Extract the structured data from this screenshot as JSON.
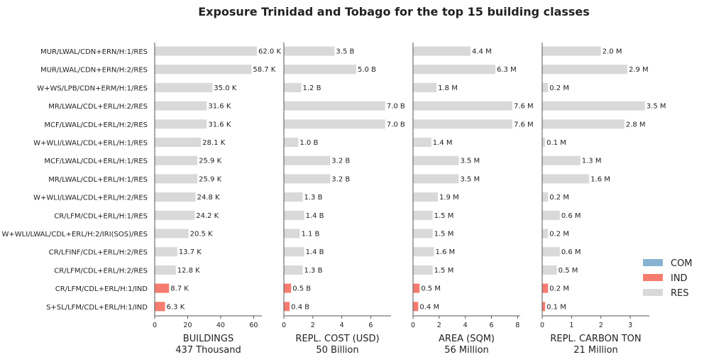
{
  "title": "Exposure Trinidad and Tobago for the top 15 building classes",
  "colors": {
    "COM": "#87b3d3",
    "IND": "#f67c6f",
    "RES": "#d9d9d9",
    "axis": "#555555"
  },
  "chart_data": {
    "type": "bar",
    "orientation": "horizontal",
    "categories": [
      "MUR/LWAL/CDN+ERN/H:1/RES",
      "MUR/LWAL/CDN+ERN/H:2/RES",
      "W+WS/LPB/CDN+ERM/H:1/RES",
      "MR/LWAL/CDL+ERL/H:2/RES",
      "MCF/LWAL/CDL+ERL/H:2/RES",
      "W+WLI/LWAL/CDL+ERL/H:1/RES",
      "MCF/LWAL/CDL+ERL/H:1/RES",
      "MR/LWAL/CDL+ERL/H:1/RES",
      "W+WLI/LWAL/CDL+ERL/H:2/RES",
      "CR/LFM/CDL+ERL/H:1/RES",
      "W+WLI/LWAL/CDL+ERL/H:2/IRI(SOS)/RES",
      "CR/LFINF/CDL+ERL/H:2/RES",
      "CR/LFM/CDL+ERL/H:2/RES",
      "CR/LFM/CDL+ERL/H:1/IND",
      "S+SL/LFM/CDL+ERL/H:1/IND"
    ],
    "occupancy": [
      "RES",
      "RES",
      "RES",
      "RES",
      "RES",
      "RES",
      "RES",
      "RES",
      "RES",
      "RES",
      "RES",
      "RES",
      "RES",
      "IND",
      "IND"
    ],
    "legend": {
      "entries": [
        "COM",
        "IND",
        "RES"
      ],
      "placement": "lower-right"
    },
    "panels": [
      {
        "xlabel": "BUILDINGS",
        "total": "437 Thousand",
        "xlim": [
          0,
          65
        ],
        "ticks": [
          0,
          20,
          40,
          60
        ],
        "values": [
          62.0,
          58.7,
          35.0,
          31.6,
          31.6,
          28.1,
          25.9,
          25.9,
          24.8,
          24.2,
          20.5,
          13.7,
          12.8,
          8.7,
          6.3
        ],
        "labels": [
          "62.0 K",
          "58.7 K",
          "35.0 K",
          "31.6 K",
          "31.6 K",
          "28.1 K",
          "25.9 K",
          "25.9 K",
          "24.8 K",
          "24.2 K",
          "20.5 K",
          "13.7 K",
          "12.8 K",
          "8.7 K",
          "6.3 K"
        ]
      },
      {
        "xlabel": "REPL. COST (USD)",
        "total": "50 Billion",
        "xlim": [
          0,
          7.4
        ],
        "ticks": [
          0,
          2,
          4,
          6
        ],
        "values": [
          3.5,
          5.0,
          1.2,
          7.0,
          7.0,
          1.0,
          3.2,
          3.2,
          1.3,
          1.4,
          1.1,
          1.4,
          1.3,
          0.5,
          0.4
        ],
        "labels": [
          "3.5 B",
          "5.0 B",
          "1.2 B",
          "7.0 B",
          "7.0 B",
          "1.0 B",
          "3.2 B",
          "3.2 B",
          "1.3 B",
          "1.4 B",
          "1.1 B",
          "1.4 B",
          "1.3 B",
          "0.5 B",
          "0.4 B"
        ]
      },
      {
        "xlabel": "AREA (SQM)",
        "total": "56 Million",
        "xlim": [
          0,
          8.2
        ],
        "ticks": [
          0,
          2,
          4,
          6,
          8
        ],
        "values": [
          4.4,
          6.3,
          1.8,
          7.6,
          7.6,
          1.4,
          3.5,
          3.5,
          1.9,
          1.5,
          1.5,
          1.6,
          1.5,
          0.5,
          0.4
        ],
        "labels": [
          "4.4 M",
          "6.3 M",
          "1.8 M",
          "7.6 M",
          "7.6 M",
          "1.4 M",
          "3.5 M",
          "3.5 M",
          "1.9 M",
          "1.5 M",
          "1.5 M",
          "1.6 M",
          "1.5 M",
          "0.5 M",
          "0.4 M"
        ]
      },
      {
        "xlabel": "REPL. CARBON TON",
        "total": "21 Million",
        "xlim": [
          0,
          3.65
        ],
        "ticks": [
          0,
          1,
          2,
          3
        ],
        "values": [
          2.0,
          2.9,
          0.2,
          3.5,
          2.8,
          0.1,
          1.3,
          1.6,
          0.2,
          0.6,
          0.2,
          0.6,
          0.5,
          0.2,
          0.1
        ],
        "labels": [
          "2.0 M",
          "2.9 M",
          "0.2 M",
          "3.5 M",
          "2.8 M",
          "0.1 M",
          "1.3 M",
          "1.6 M",
          "0.2 M",
          "0.6 M",
          "0.2 M",
          "0.6 M",
          "0.5 M",
          "0.2 M",
          "0.1 M"
        ]
      }
    ]
  }
}
